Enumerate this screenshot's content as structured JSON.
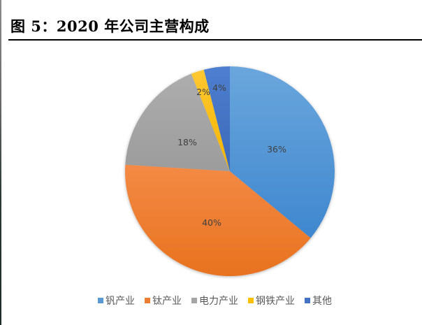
{
  "header": {
    "title": "图 5：2020 年公司主营构成"
  },
  "legend": {
    "items": [
      {
        "label": "钒产业",
        "color": "#5B9BD5"
      },
      {
        "label": "钛产业",
        "color": "#ED7D31"
      },
      {
        "label": "电力产业",
        "color": "#A5A5A5"
      },
      {
        "label": "钢铁产业",
        "color": "#FFC000"
      },
      {
        "label": "其他",
        "color": "#4472C4"
      }
    ]
  },
  "slices": [
    {
      "label": "36%"
    },
    {
      "label": "40%"
    },
    {
      "label": "18%"
    },
    {
      "label": "2%"
    },
    {
      "label": "4%"
    }
  ],
  "chart_data": {
    "type": "pie",
    "title": "图 5：2020 年公司主营构成",
    "categories": [
      "钒产业",
      "钛产业",
      "电力产业",
      "钢铁产业",
      "其他"
    ],
    "values": [
      36,
      40,
      18,
      2,
      4
    ],
    "unit": "%",
    "colors": [
      "#5B9BD5",
      "#ED7D31",
      "#A5A5A5",
      "#FFC000",
      "#4472C4"
    ],
    "start_angle": "12 o'clock",
    "direction": "clockwise",
    "legend_position": "bottom",
    "data_labels": [
      "36%",
      "40%",
      "18%",
      "2%",
      "4%"
    ]
  }
}
